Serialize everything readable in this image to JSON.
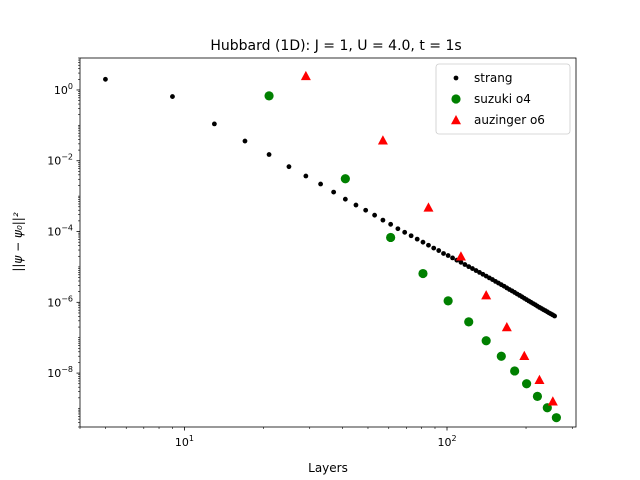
{
  "chart_data": {
    "type": "scatter",
    "title": "Hubbard (1D):  J = 1, U = 4.0, t = 1s",
    "xlabel": "Layers",
    "ylabel": "||ψ − ψ₀||²",
    "xscale": "log",
    "yscale": "log",
    "xlim": [
      4.0,
      310
    ],
    "ylim": [
      3e-10,
      8
    ],
    "x_major_ticks": [
      {
        "value": 10,
        "label": "10",
        "sup": "1"
      },
      {
        "value": 100,
        "label": "10",
        "sup": "2"
      }
    ],
    "y_major_ticks": [
      {
        "value": 1,
        "label": "10",
        "sup": "0"
      },
      {
        "value": 0.01,
        "label": "10",
        "sup": "−2"
      },
      {
        "value": 0.0001,
        "label": "10",
        "sup": "−4"
      },
      {
        "value": 1e-06,
        "label": "10",
        "sup": "−6"
      },
      {
        "value": 1e-08,
        "label": "10",
        "sup": "−8"
      }
    ],
    "legend_position": "top-right",
    "grid": false,
    "series": [
      {
        "name": "strang",
        "marker": "dot",
        "color": "#000000",
        "points": [
          [
            5,
            2.0
          ],
          [
            9,
            0.65
          ],
          [
            13,
            0.11
          ],
          [
            17,
            0.036
          ],
          [
            21,
            0.015
          ],
          [
            25,
            0.0068
          ],
          [
            29,
            0.0037
          ],
          [
            33,
            0.0022
          ],
          [
            37,
            0.0013
          ],
          [
            41,
            0.00082
          ],
          [
            45,
            0.00056
          ],
          [
            49,
            0.0004
          ],
          [
            53,
            0.00029
          ],
          [
            57,
            0.00021
          ],
          [
            61,
            0.00016
          ],
          [
            65,
            0.00012
          ],
          [
            69,
            9.5e-05
          ],
          [
            73,
            7.6e-05
          ],
          [
            77,
            6.1e-05
          ],
          [
            81,
            5e-05
          ],
          [
            85,
            4.1e-05
          ],
          [
            89,
            3.4e-05
          ],
          [
            93,
            2.9e-05
          ],
          [
            97,
            2.4e-05
          ],
          [
            101,
            2.1e-05
          ],
          [
            105,
            1.8e-05
          ],
          [
            109,
            1.55e-05
          ],
          [
            113,
            1.35e-05
          ],
          [
            117,
            1.17e-05
          ],
          [
            121,
            1.02e-05
          ],
          [
            125,
            9e-06
          ],
          [
            129,
            7.9e-06
          ],
          [
            133,
            7e-06
          ],
          [
            137,
            6.2e-06
          ],
          [
            141,
            5.5e-06
          ],
          [
            145,
            4.9e-06
          ],
          [
            149,
            4.4e-06
          ],
          [
            153,
            3.9e-06
          ],
          [
            157,
            3.5e-06
          ],
          [
            161,
            3.15e-06
          ],
          [
            165,
            2.85e-06
          ],
          [
            169,
            2.55e-06
          ],
          [
            173,
            2.3e-06
          ],
          [
            177,
            2.1e-06
          ],
          [
            181,
            1.9e-06
          ],
          [
            185,
            1.72e-06
          ],
          [
            189,
            1.57e-06
          ],
          [
            193,
            1.43e-06
          ],
          [
            197,
            1.3e-06
          ],
          [
            201,
            1.19e-06
          ],
          [
            205,
            1.09e-06
          ],
          [
            209,
            1e-06
          ],
          [
            213,
            9.2e-07
          ],
          [
            217,
            8.5e-07
          ],
          [
            221,
            7.8e-07
          ],
          [
            225,
            7.2e-07
          ],
          [
            229,
            6.7e-07
          ],
          [
            233,
            6.2e-07
          ],
          [
            237,
            5.8e-07
          ],
          [
            241,
            5.4e-07
          ],
          [
            245,
            5e-07
          ],
          [
            249,
            4.7e-07
          ],
          [
            253,
            4.4e-07
          ],
          [
            257,
            4.1e-07
          ]
        ]
      },
      {
        "name": "suzuki o4",
        "marker": "circle",
        "color": "#008000",
        "points": [
          [
            21,
            0.68
          ],
          [
            41,
            0.0031
          ],
          [
            61,
            6.8e-05
          ],
          [
            81,
            6.5e-06
          ],
          [
            101,
            1.1e-06
          ],
          [
            121,
            2.8e-07
          ],
          [
            141,
            8.2e-08
          ],
          [
            161,
            3e-08
          ],
          [
            181,
            1.15e-08
          ],
          [
            201,
            5e-09
          ],
          [
            221,
            2.2e-09
          ],
          [
            241,
            1.05e-09
          ],
          [
            261,
            5.5e-10
          ]
        ]
      },
      {
        "name": "auzinger o6",
        "marker": "triangle",
        "color": "#ff0000",
        "points": [
          [
            29,
            2.5
          ],
          [
            57,
            0.038
          ],
          [
            85,
            0.00048
          ],
          [
            113,
            2e-05
          ],
          [
            141,
            1.6e-06
          ],
          [
            169,
            2e-07
          ],
          [
            197,
            3.1e-08
          ],
          [
            225,
            6.5e-09
          ],
          [
            253,
            1.6e-09
          ]
        ]
      }
    ]
  }
}
